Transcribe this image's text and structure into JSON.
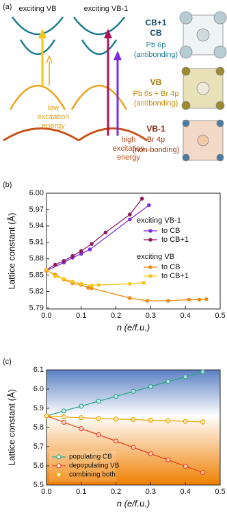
{
  "panel_a": {
    "label": "(a)",
    "columns": [
      "exciting VB",
      "exciting VB-1"
    ],
    "bands": [
      {
        "title": [
          "CB+1",
          "CB"
        ],
        "orbital": "Pb 6p",
        "character": "(antibonding)"
      },
      {
        "title": [
          "VB"
        ],
        "orbital": "Pb 6s + Br 4p",
        "character": "(antibonding)"
      },
      {
        "title": [
          "VB-1"
        ],
        "orbital": "Br 4p",
        "character": "(non-bonding)"
      }
    ],
    "low_energy": [
      "low",
      "excitation",
      "energy"
    ],
    "high_energy": [
      "high",
      "excitation",
      "energy"
    ]
  },
  "chart_data": [
    {
      "type": "line",
      "panel_label": "(b)",
      "xlabel": "n (e/f.u.)",
      "ylabel": "Lattice constant (Å)",
      "xlim": [
        0,
        0.5
      ],
      "xticks": [
        {
          "value": 0,
          "label": "0.0"
        },
        0.1,
        0.2,
        0.3,
        0.4,
        0.5
      ],
      "ylim": [
        5.788,
        6.0
      ],
      "yticks": [
        5.79,
        5.82,
        5.85,
        5.88,
        5.91,
        5.94,
        5.97,
        {
          "value": 6,
          "label": "6.00"
        }
      ],
      "marker": "filled",
      "legend_titles": [
        "exciting VB-1",
        "exciting VB"
      ],
      "series": [
        {
          "name": "to CB",
          "group": 0,
          "color": "#7b2be0",
          "x": [
            0,
            0.05,
            0.075,
            0.1,
            0.125,
            0.24,
            0.295
          ],
          "values": [
            5.858,
            5.873,
            5.882,
            5.889,
            5.897,
            5.952,
            5.978
          ]
        },
        {
          "name": "to CB+1",
          "group": 0,
          "color": "#8b1a5a",
          "x": [
            0,
            0.025,
            0.05,
            0.075,
            0.1,
            0.13,
            0.17,
            0.24,
            0.275
          ],
          "values": [
            5.86,
            5.869,
            5.876,
            5.885,
            5.894,
            5.907,
            5.928,
            5.961,
            5.99
          ]
        },
        {
          "name": "to CB",
          "group": 1,
          "color": "#f08a10",
          "x": [
            0,
            0.025,
            0.05,
            0.075,
            0.1,
            0.12,
            0.13,
            0.24,
            0.29,
            0.35,
            0.41,
            0.44,
            0.46
          ],
          "values": [
            5.858,
            5.851,
            5.842,
            5.835,
            5.832,
            5.827,
            5.826,
            5.808,
            5.803,
            5.803,
            5.805,
            5.805,
            5.806
          ]
        },
        {
          "name": "to CB+1",
          "group": 1,
          "color": "#f5c518",
          "x": [
            0,
            0.025,
            0.05,
            0.075,
            0.1,
            0.13,
            0.15,
            0.24,
            0.28
          ],
          "values": [
            5.86,
            5.848,
            5.843,
            5.838,
            5.834,
            5.831,
            5.832,
            5.834,
            5.836
          ]
        }
      ]
    },
    {
      "type": "line",
      "panel_label": "(c)",
      "xlabel": "n (e/f.u.)",
      "ylabel": "Lattice constant (Å)",
      "xlim": [
        0,
        0.5
      ],
      "xticks": [
        {
          "value": 0,
          "label": "0.0"
        },
        0.1,
        0.2,
        0.3,
        0.4,
        0.5
      ],
      "ylim": [
        5.5,
        6.1
      ],
      "yticks": [
        5.5,
        5.6,
        5.7,
        5.8,
        5.9,
        {
          "value": 6,
          "label": "6.0"
        },
        6.1
      ],
      "marker": "hollow",
      "shade_split": 5.86,
      "x": [
        0,
        0.05,
        0.1,
        0.15,
        0.2,
        0.25,
        0.3,
        0.35,
        0.4,
        0.45
      ],
      "series": [
        {
          "name": "populating CB",
          "color": "#2aa58a",
          "values": [
            5.86,
            5.886,
            5.911,
            5.937,
            5.962,
            5.988,
            6.013,
            6.039,
            6.064,
            6.09
          ]
        },
        {
          "name": "depopulating VB",
          "color": "#f04020",
          "values": [
            5.86,
            5.827,
            5.794,
            5.762,
            5.729,
            5.696,
            5.663,
            5.631,
            5.598,
            5.565
          ]
        },
        {
          "name": "combining both",
          "color": "#f0a800",
          "values": [
            5.86,
            5.855,
            5.851,
            5.847,
            5.844,
            5.841,
            5.838,
            5.835,
            5.832,
            5.829
          ]
        }
      ]
    }
  ]
}
